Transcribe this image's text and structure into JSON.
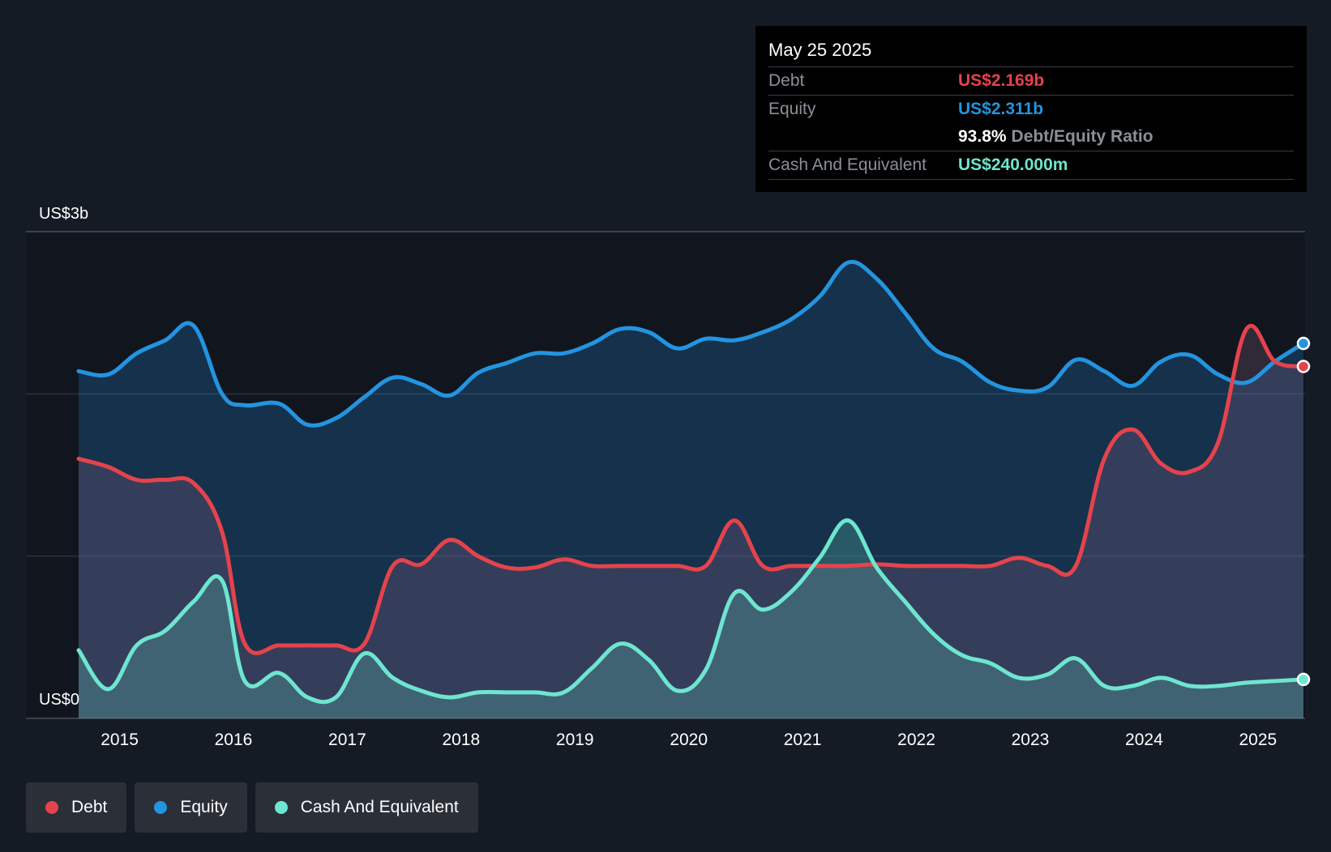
{
  "colors": {
    "debt": "#e5434c",
    "equity": "#2394e0",
    "cash": "#6ee6cf"
  },
  "tooltip": {
    "date": "May 25 2025",
    "debt_label": "Debt",
    "debt_value": "US$2.169b",
    "equity_label": "Equity",
    "equity_value": "US$2.311b",
    "ratio_value": "93.8%",
    "ratio_label": "Debt/Equity Ratio",
    "cash_label": "Cash And Equivalent",
    "cash_value": "US$240.000m"
  },
  "legend": [
    {
      "label": "Debt",
      "color": "#e5434c"
    },
    {
      "label": "Equity",
      "color": "#2394e0"
    },
    {
      "label": "Cash And Equivalent",
      "color": "#6ee6cf"
    }
  ],
  "chart_data": {
    "type": "area",
    "title": "",
    "xlabel": "",
    "ylabel": "",
    "y_max_label": "US$3b",
    "y_min_label": "US$0",
    "ylim": [
      0,
      3
    ],
    "xlim": [
      2014.64,
      2025.4
    ],
    "x_ticks": [
      "2015",
      "2016",
      "2017",
      "2018",
      "2019",
      "2020",
      "2021",
      "2022",
      "2023",
      "2024",
      "2025"
    ],
    "x_tick_values": [
      2015,
      2016,
      2017,
      2018,
      2019,
      2020,
      2021,
      2022,
      2023,
      2024,
      2025
    ],
    "gridlines": [
      0,
      1,
      2,
      3
    ],
    "legend_position": "bottom-left",
    "series": [
      {
        "name": "Equity",
        "key": "equity",
        "x": [
          2014.64,
          2014.9,
          2015.15,
          2015.4,
          2015.65,
          2015.9,
          2016.1,
          2016.4,
          2016.65,
          2016.9,
          2017.15,
          2017.4,
          2017.65,
          2017.9,
          2018.15,
          2018.4,
          2018.65,
          2018.9,
          2019.15,
          2019.4,
          2019.65,
          2019.9,
          2020.15,
          2020.4,
          2020.65,
          2020.9,
          2021.15,
          2021.4,
          2021.65,
          2021.9,
          2022.15,
          2022.4,
          2022.65,
          2022.9,
          2023.15,
          2023.4,
          2023.65,
          2023.9,
          2024.15,
          2024.4,
          2024.65,
          2024.9,
          2025.15,
          2025.4
        ],
        "values": [
          2.14,
          2.12,
          2.25,
          2.33,
          2.42,
          2.0,
          1.93,
          1.94,
          1.81,
          1.85,
          1.98,
          2.1,
          2.06,
          1.99,
          2.13,
          2.19,
          2.25,
          2.25,
          2.31,
          2.4,
          2.38,
          2.28,
          2.34,
          2.33,
          2.38,
          2.46,
          2.6,
          2.81,
          2.71,
          2.5,
          2.28,
          2.2,
          2.07,
          2.02,
          2.04,
          2.21,
          2.14,
          2.05,
          2.2,
          2.24,
          2.12,
          2.07,
          2.2,
          2.311
        ]
      },
      {
        "name": "Debt",
        "key": "debt",
        "x": [
          2014.64,
          2014.9,
          2015.15,
          2015.4,
          2015.65,
          2015.9,
          2016.1,
          2016.4,
          2016.65,
          2016.9,
          2017.15,
          2017.4,
          2017.65,
          2017.9,
          2018.15,
          2018.4,
          2018.65,
          2018.9,
          2019.15,
          2019.4,
          2019.65,
          2019.9,
          2020.15,
          2020.4,
          2020.65,
          2020.9,
          2021.15,
          2021.4,
          2021.65,
          2021.9,
          2022.15,
          2022.4,
          2022.65,
          2022.9,
          2023.15,
          2023.4,
          2023.65,
          2023.9,
          2024.15,
          2024.4,
          2024.65,
          2024.9,
          2025.15,
          2025.4
        ],
        "values": [
          1.6,
          1.55,
          1.47,
          1.47,
          1.45,
          1.15,
          0.46,
          0.45,
          0.45,
          0.45,
          0.46,
          0.94,
          0.95,
          1.1,
          1.0,
          0.93,
          0.93,
          0.98,
          0.94,
          0.94,
          0.94,
          0.94,
          0.94,
          1.22,
          0.94,
          0.94,
          0.94,
          0.94,
          0.95,
          0.94,
          0.94,
          0.94,
          0.94,
          0.99,
          0.94,
          0.94,
          1.6,
          1.78,
          1.57,
          1.52,
          1.7,
          2.4,
          2.2,
          2.169
        ]
      },
      {
        "name": "Cash And Equivalent",
        "key": "cash",
        "x": [
          2014.64,
          2014.9,
          2015.15,
          2015.4,
          2015.65,
          2015.9,
          2016.1,
          2016.4,
          2016.65,
          2016.9,
          2017.15,
          2017.4,
          2017.65,
          2017.9,
          2018.15,
          2018.4,
          2018.65,
          2018.9,
          2019.15,
          2019.4,
          2019.65,
          2019.9,
          2020.15,
          2020.4,
          2020.65,
          2020.9,
          2021.15,
          2021.4,
          2021.65,
          2021.9,
          2022.15,
          2022.4,
          2022.65,
          2022.9,
          2023.15,
          2023.4,
          2023.65,
          2023.9,
          2024.15,
          2024.4,
          2024.65,
          2024.9,
          2025.15,
          2025.4
        ],
        "values": [
          0.42,
          0.18,
          0.45,
          0.54,
          0.72,
          0.85,
          0.23,
          0.28,
          0.13,
          0.13,
          0.4,
          0.25,
          0.17,
          0.13,
          0.16,
          0.16,
          0.16,
          0.16,
          0.31,
          0.46,
          0.36,
          0.17,
          0.3,
          0.77,
          0.67,
          0.78,
          0.99,
          1.22,
          0.93,
          0.72,
          0.52,
          0.39,
          0.34,
          0.25,
          0.27,
          0.37,
          0.2,
          0.2,
          0.25,
          0.2,
          0.2,
          0.22,
          0.23,
          0.24
        ]
      }
    ]
  }
}
